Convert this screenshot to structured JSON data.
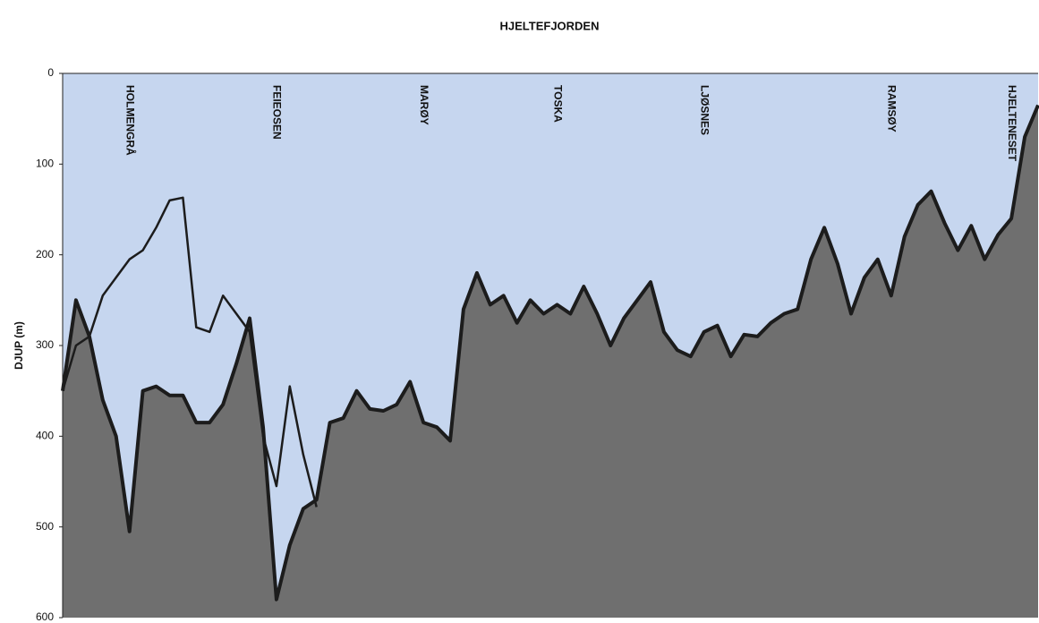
{
  "chart_data": {
    "type": "area",
    "title": "HJELTEFJORDEN",
    "y_label": "DJUP (m)",
    "categories": [
      null,
      null,
      null,
      null,
      null,
      "HOLMENGRÅ",
      null,
      null,
      null,
      null,
      null,
      null,
      null,
      null,
      null,
      null,
      "FEIEOSEN",
      null,
      null,
      null,
      null,
      null,
      null,
      null,
      null,
      null,
      null,
      "MARØY",
      null,
      null,
      null,
      null,
      null,
      null,
      null,
      null,
      null,
      "TOSKA",
      null,
      null,
      null,
      null,
      null,
      null,
      null,
      null,
      null,
      null,
      "LJØSNES",
      null,
      null,
      null,
      null,
      null,
      null,
      null,
      null,
      null,
      null,
      null,
      null,
      null,
      "RAMSØY",
      null,
      null,
      null,
      null,
      null,
      null,
      null,
      null,
      "HJELTENESET",
      null,
      null
    ],
    "series": [
      {
        "color": "#1c1c1c",
        "fill": "#6f6f6f",
        "values": [
          350,
          250,
          290,
          360,
          400,
          505,
          350,
          345,
          355,
          355,
          385,
          385,
          365,
          320,
          270,
          390,
          580,
          520,
          480,
          470,
          385,
          380,
          350,
          370,
          372,
          365,
          340,
          385,
          390,
          405,
          260,
          220,
          255,
          245,
          275,
          250,
          265,
          255,
          265,
          235,
          265,
          300,
          270,
          250,
          230,
          285,
          305,
          312,
          285,
          278,
          312,
          288,
          290,
          275,
          265,
          260,
          205,
          170,
          210,
          265,
          225,
          205,
          245,
          180,
          145,
          130,
          165,
          195,
          168,
          205,
          178,
          160,
          70,
          35
        ]
      },
      {
        "color": "#1c1c1c",
        "values": [
          350,
          300,
          290,
          245,
          225,
          205,
          195,
          170,
          140,
          137,
          280,
          285,
          245,
          265,
          285,
          400,
          455,
          345,
          420,
          478,
          null,
          null,
          null,
          null,
          null,
          null,
          null,
          null,
          null,
          null,
          null,
          null,
          null,
          null,
          null,
          null,
          null,
          null,
          null,
          null,
          null,
          null,
          null,
          null,
          null,
          null,
          null,
          null,
          null,
          null,
          null,
          null,
          null,
          null,
          null,
          null,
          null,
          null,
          null,
          null,
          null,
          null,
          null,
          null,
          null,
          null,
          null,
          null,
          null,
          null,
          null,
          null,
          null,
          null
        ]
      }
    ],
    "ylim": [
      0,
      600
    ],
    "yticks": [
      0,
      100,
      200,
      300,
      400,
      500,
      600
    ],
    "invert_y": true,
    "background": "#c6d6ef"
  }
}
